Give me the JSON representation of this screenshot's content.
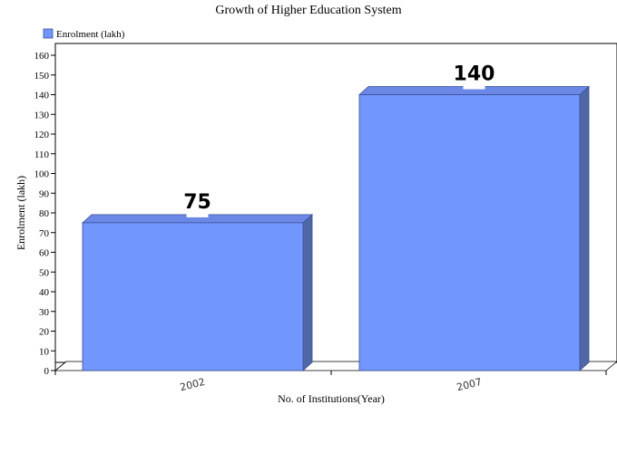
{
  "chart_data": {
    "type": "bar",
    "title": "Growth of Higher Education System",
    "xlabel": "No. of Institutions(Year)",
    "ylabel": "Enrolment (lakh)",
    "categories": [
      "2002",
      "2007"
    ],
    "series": [
      {
        "name": "Enrolment (lakh)",
        "values": [
          75,
          140
        ]
      }
    ],
    "data_labels": [
      "75",
      "140"
    ],
    "ylim": [
      0,
      160
    ],
    "yticks": [
      "0",
      "10",
      "20",
      "30",
      "40",
      "50",
      "60",
      "70",
      "80",
      "90",
      "100",
      "110",
      "120",
      "130",
      "140",
      "150",
      "160"
    ],
    "legend_position": "top-left",
    "grid": false,
    "style": "3d-bar",
    "colors": {
      "bar_front": "#7196fe",
      "bar_top": "#6b88e6",
      "bar_side": "#5067a6",
      "bar_edge": "#3a4f95",
      "axis": "#000000"
    }
  }
}
